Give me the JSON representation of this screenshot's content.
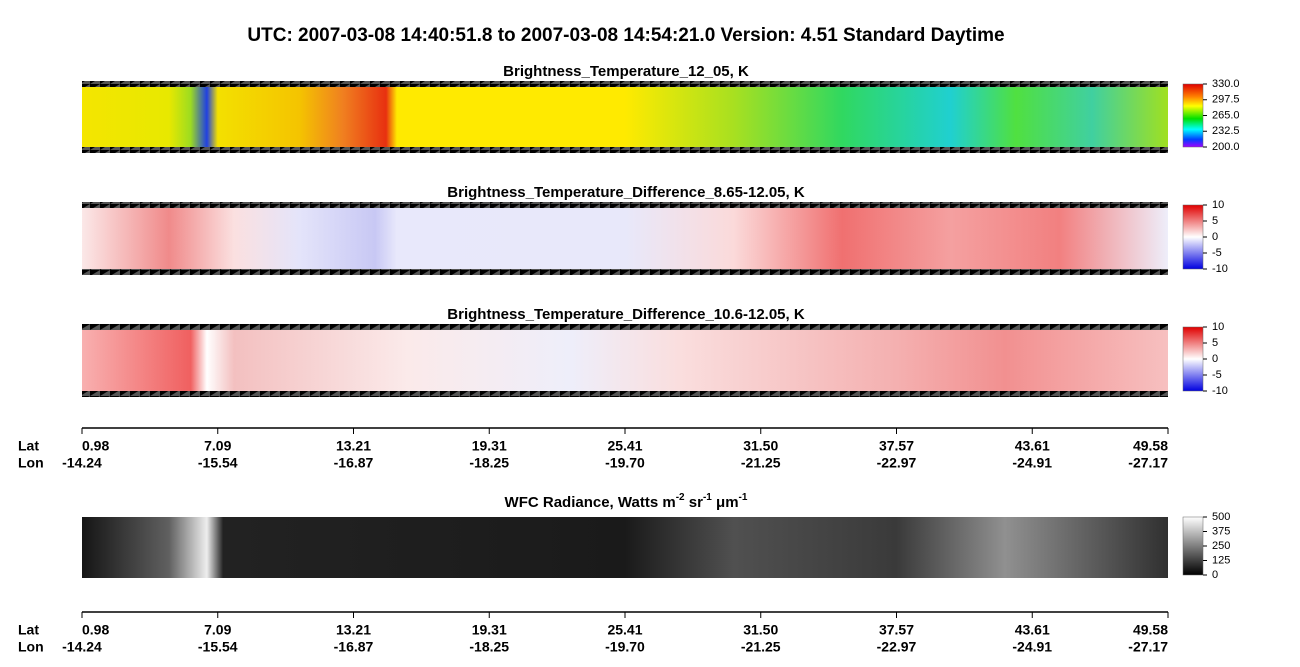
{
  "header": {
    "title": "UTC:  2007-03-08   14:40:51.8  to  2007-03-08   14:54:21.0    Version: 4.51  Standard Daytime"
  },
  "panels": [
    {
      "title": "Brightness_Temperature_12_05, K",
      "colorbar": [
        "330.0",
        "297.5",
        "265.0",
        "232.5",
        "200.0"
      ]
    },
    {
      "title": "Brightness_Temperature_Difference_8.65-12.05, K",
      "colorbar": [
        "10",
        "5",
        "0",
        "-5",
        "-10"
      ]
    },
    {
      "title": "Brightness_Temperature_Difference_10.6-12.05, K",
      "colorbar": [
        "10",
        "5",
        "0",
        "-5",
        "-10"
      ]
    },
    {
      "title_parts": [
        "WFC Radiance, Watts m",
        "-2",
        " sr",
        "-1",
        " μm",
        "-1"
      ],
      "colorbar": [
        "500",
        "375",
        "250",
        "125",
        "0"
      ]
    }
  ],
  "axis": {
    "lat_label": "Lat",
    "lon_label": "Lon",
    "lat": [
      "0.98",
      "7.09",
      "13.21",
      "19.31",
      "25.41",
      "31.50",
      "37.57",
      "43.61",
      "49.58"
    ],
    "lon": [
      "-14.24",
      "-15.54",
      "-16.87",
      "-18.25",
      "-19.70",
      "-21.25",
      "-22.97",
      "-24.91",
      "-27.17"
    ]
  }
}
